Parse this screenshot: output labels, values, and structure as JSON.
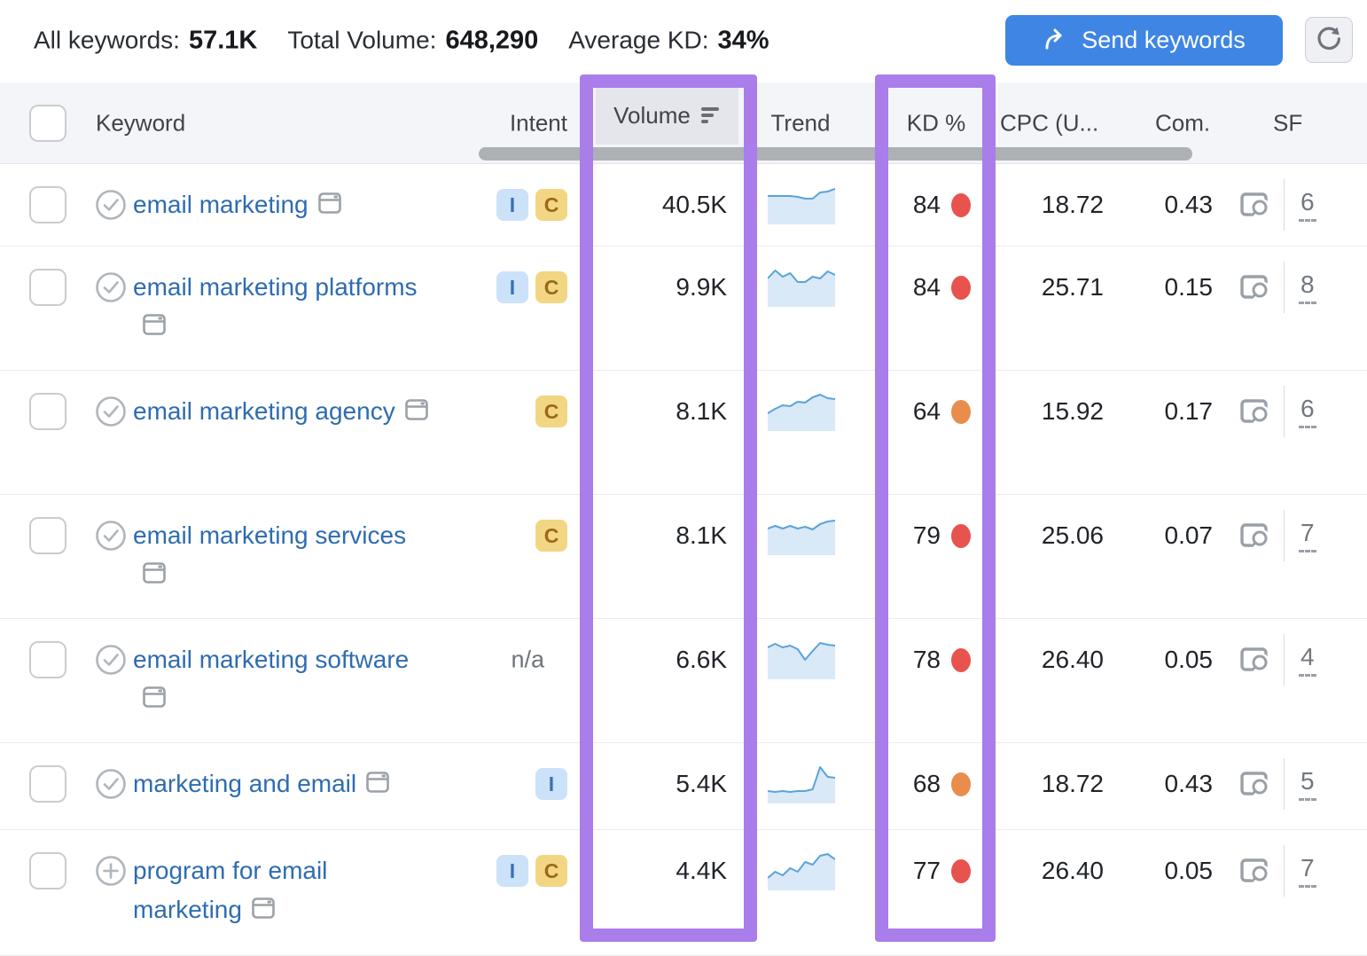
{
  "toolbar": {
    "stats": [
      {
        "label": "All keywords:",
        "value": "57.1K"
      },
      {
        "label": "Total Volume:",
        "value": "648,290"
      },
      {
        "label": "Average KD:",
        "value": "34%"
      }
    ],
    "send_button_label": "Send keywords",
    "accent_color": "#3f86e4",
    "icons": {
      "send": "arrow-curve-right-icon",
      "refresh": "refresh-icon"
    }
  },
  "table": {
    "columns": [
      "Keyword",
      "Intent",
      "Volume",
      "Trend",
      "KD %",
      "CPC (U...",
      "Com.",
      "SF"
    ],
    "sorted_column": "Volume",
    "sort_icon": "sort-descending-icon",
    "highlighted_columns": [
      "Volume",
      "KD %"
    ],
    "highlight_color": "#a97dea",
    "intent_na_label": "n/a",
    "kd_colors": {
      "red": "#e9534e",
      "orange": "#e98d4c"
    },
    "spark_colors": {
      "line": "#5ba3d9",
      "fill": "#d9e9f7"
    },
    "intent_styles": {
      "I": {
        "bg": "#cbe2f9",
        "text": "#3a70b8"
      },
      "C": {
        "bg": "#f3d683",
        "text": "#9a6a16"
      }
    },
    "rows": [
      {
        "keyword": "email marketing",
        "row_icon": "check-circle",
        "intents": [
          "I",
          "C"
        ],
        "volume": "40.5K",
        "trend": [
          12,
          12,
          12,
          12,
          13,
          15,
          15,
          8,
          7,
          4
        ],
        "kd": "84",
        "kd_level": "red",
        "cpc": "18.72",
        "com": "0.43",
        "sf": "6"
      },
      {
        "keyword": "email marketing platforms",
        "row_icon": "check-circle",
        "intents": [
          "I",
          "C"
        ],
        "volume": "9.9K",
        "trend": [
          12,
          3,
          10,
          6,
          16,
          16,
          10,
          12,
          4,
          8
        ],
        "kd": "84",
        "kd_level": "red",
        "cpc": "25.71",
        "com": "0.15",
        "sf": "8"
      },
      {
        "keyword": "email marketing agency",
        "row_icon": "check-circle",
        "intents": [
          "C"
        ],
        "volume": "8.1K",
        "trend": [
          24,
          19,
          15,
          16,
          11,
          12,
          6,
          3,
          7,
          8
        ],
        "kd": "64",
        "kd_level": "orange",
        "cpc": "15.92",
        "com": "0.17",
        "sf": "6"
      },
      {
        "keyword": "email marketing services",
        "row_icon": "check-circle",
        "intents": [
          "C"
        ],
        "volume": "8.1K",
        "trend": [
          14,
          11,
          14,
          11,
          14,
          12,
          15,
          9,
          6,
          5
        ],
        "kd": "79",
        "kd_level": "red",
        "cpc": "25.06",
        "com": "0.07",
        "sf": "7"
      },
      {
        "keyword": "email marketing software",
        "row_icon": "check-circle",
        "intents": [],
        "volume": "6.6K",
        "trend": [
          8,
          4,
          8,
          6,
          10,
          22,
          12,
          3,
          5,
          6
        ],
        "kd": "78",
        "kd_level": "red",
        "cpc": "26.40",
        "com": "0.05",
        "sf": "4"
      },
      {
        "keyword": "marketing and email",
        "row_icon": "check-circle",
        "intents": [
          "I"
        ],
        "volume": "5.4K",
        "trend": [
          30,
          31,
          30,
          31,
          30,
          30,
          28,
          3,
          14,
          15
        ],
        "kd": "68",
        "kd_level": "orange",
        "cpc": "18.72",
        "com": "0.43",
        "sf": "5"
      },
      {
        "keyword": "program for email marketing",
        "row_icon": "plus-circle",
        "intents": [
          "I",
          "C"
        ],
        "volume": "4.4K",
        "trend": [
          30,
          23,
          27,
          19,
          23,
          12,
          15,
          5,
          3,
          9
        ],
        "kd": "77",
        "kd_level": "red",
        "cpc": "26.40",
        "com": "0.05",
        "sf": "7"
      }
    ]
  }
}
